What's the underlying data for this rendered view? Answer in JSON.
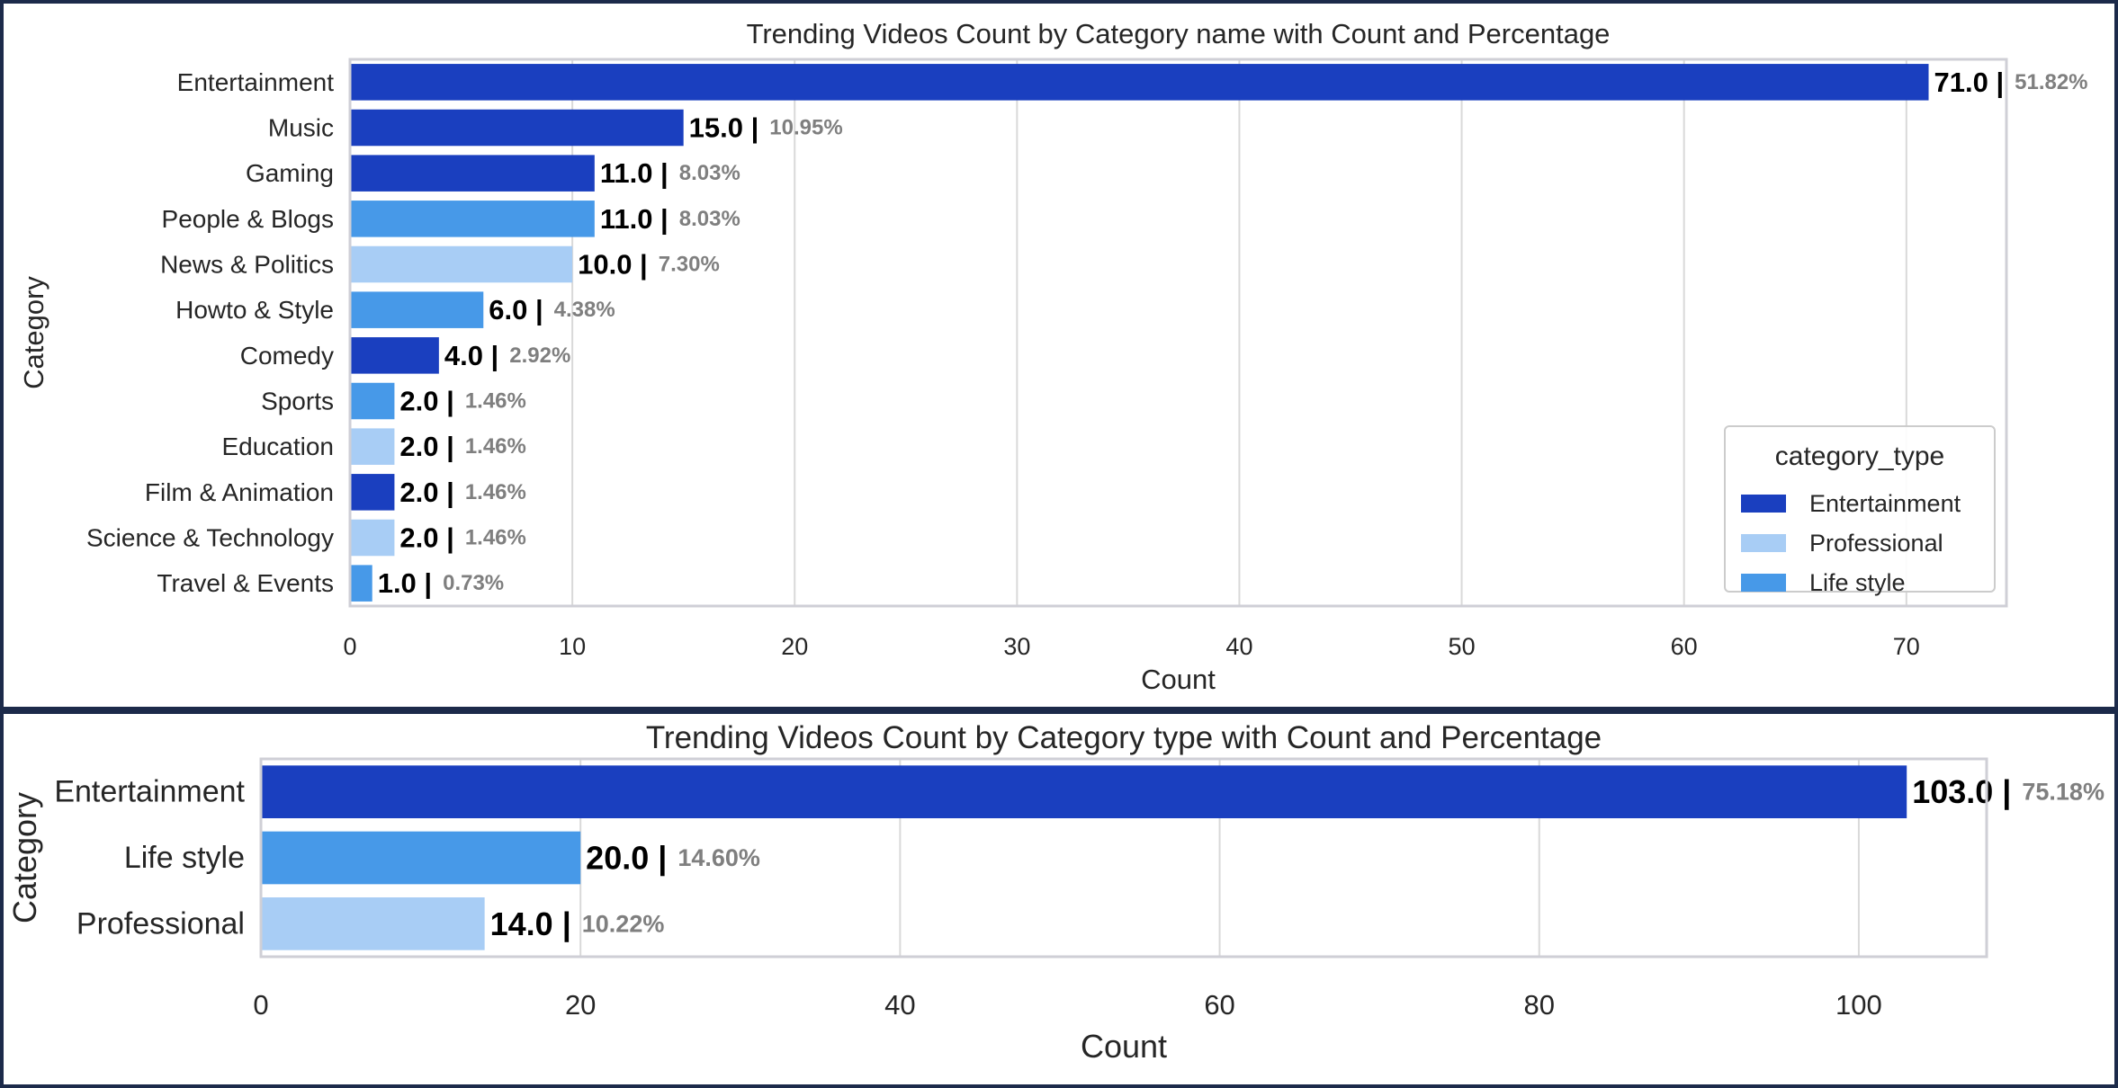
{
  "colors": {
    "Entertainment": "#1a3fbf",
    "Professional": "#a8cdf5",
    "Life style": "#4799e8",
    "grid": "#d9d9d9",
    "frame": "#cfcfd6",
    "border": "#1c2a4a"
  },
  "chart_data": [
    {
      "type": "bar",
      "orientation": "horizontal",
      "title": "Trending Videos Count by Category name with Count and Percentage",
      "xlabel": "Count",
      "ylabel": "Category",
      "xlim": [
        0,
        74.5
      ],
      "xticks": [
        0,
        10,
        20,
        30,
        40,
        50,
        60,
        70
      ],
      "grid": true,
      "legend": {
        "title": "category_type",
        "placement": "lower-right",
        "entries": [
          "Entertainment",
          "Professional",
          "Life style"
        ]
      },
      "categories": [
        "Entertainment",
        "Music",
        "Gaming",
        "People & Blogs",
        "News & Politics",
        "Howto & Style",
        "Comedy",
        "Sports",
        "Education",
        "Film & Animation",
        "Science & Technology",
        "Travel & Events"
      ],
      "values": [
        71.0,
        15.0,
        11.0,
        11.0,
        10.0,
        6.0,
        4.0,
        2.0,
        2.0,
        2.0,
        2.0,
        1.0
      ],
      "value_labels": [
        "71.0 |",
        "15.0 |",
        "11.0 |",
        "11.0 |",
        "10.0 |",
        "6.0 |",
        "4.0 |",
        "2.0 |",
        "2.0 |",
        "2.0 |",
        "2.0 |",
        "1.0 |"
      ],
      "percentages": [
        "51.82%",
        "10.95%",
        "8.03%",
        "8.03%",
        "7.30%",
        "4.38%",
        "2.92%",
        "1.46%",
        "1.46%",
        "1.46%",
        "1.46%",
        "0.73%"
      ],
      "category_type": [
        "Entertainment",
        "Entertainment",
        "Entertainment",
        "Life style",
        "Professional",
        "Life style",
        "Entertainment",
        "Life style",
        "Professional",
        "Entertainment",
        "Professional",
        "Life style"
      ]
    },
    {
      "type": "bar",
      "orientation": "horizontal",
      "title": "Trending Videos Count by Category type with Count and Percentage",
      "xlabel": "Count",
      "ylabel": "Category",
      "xlim": [
        0,
        108
      ],
      "xticks": [
        0,
        20,
        40,
        60,
        80,
        100
      ],
      "grid": true,
      "categories": [
        "Entertainment",
        "Life style",
        "Professional"
      ],
      "values": [
        103.0,
        20.0,
        14.0
      ],
      "value_labels": [
        "103.0 |",
        "20.0 |",
        "14.0 |"
      ],
      "percentages": [
        "75.18%",
        "14.60%",
        "10.22%"
      ],
      "category_type": [
        "Entertainment",
        "Life style",
        "Professional"
      ]
    }
  ]
}
